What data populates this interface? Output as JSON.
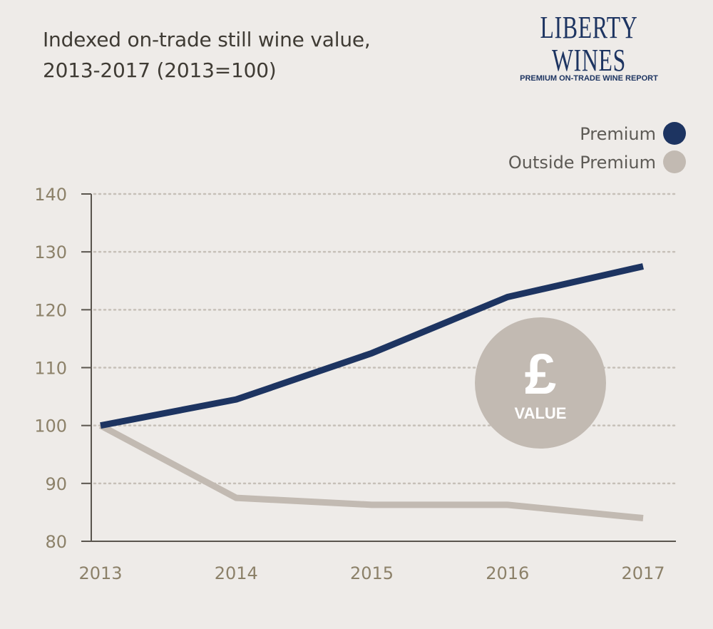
{
  "title_lines": [
    "Indexed on-trade still wine value,",
    "2013-2017 (2013=100)"
  ],
  "brand": {
    "name": "LIBERTY WINES",
    "tagline": "PREMIUM ON-TRADE WINE REPORT"
  },
  "badge": {
    "symbol": "£",
    "label": "VALUE"
  },
  "colors": {
    "premium": "#1d3461",
    "outside": "#c2bab2",
    "axis": "#5a554e",
    "grid": "#c6c0b8",
    "tick": "#8c8169",
    "badge": "#c2bab2"
  },
  "chart_data": {
    "type": "line",
    "title": "Indexed on-trade still wine value, 2013-2017 (2013=100)",
    "xlabel": "",
    "ylabel": "",
    "categories": [
      "2013",
      "2014",
      "2015",
      "2016",
      "2017"
    ],
    "ylim": [
      80,
      140
    ],
    "yticks": [
      80,
      90,
      100,
      110,
      120,
      130,
      140
    ],
    "grid": true,
    "legend_position": "top-right",
    "series": [
      {
        "name": "Premium",
        "values": [
          100,
          104.5,
          112.5,
          122.2,
          127.5
        ]
      },
      {
        "name": "Outside Premium",
        "values": [
          100,
          87.5,
          86.3,
          86.3,
          84
        ]
      }
    ]
  }
}
